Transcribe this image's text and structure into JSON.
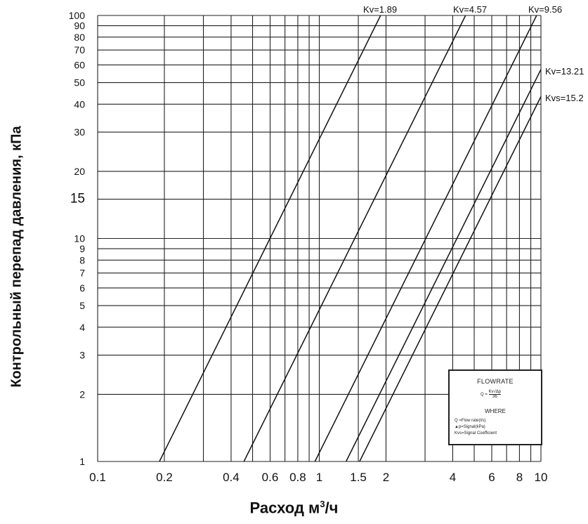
{
  "chart_data": {
    "type": "line",
    "scale": {
      "x": "log",
      "y": "log"
    },
    "xlim": [
      0.1,
      10
    ],
    "ylim": [
      1,
      100
    ],
    "grid": true,
    "xlabel": "Расход м",
    "xlabel_sup": "3",
    "xlabel_suffix": "/ч",
    "ylabel": "Контрольный перепад давления, кПа",
    "x_ticks": [
      0.1,
      0.2,
      0.3,
      0.4,
      0.5,
      0.6,
      0.7,
      0.8,
      0.9,
      1,
      1.5,
      2,
      3,
      4,
      5,
      6,
      7,
      8,
      9,
      10
    ],
    "x_tick_labels": [
      {
        "value": 0.1,
        "label": "0.1"
      },
      {
        "value": 0.2,
        "label": "0.2"
      },
      {
        "value": 0.4,
        "label": "0.4"
      },
      {
        "value": 0.6,
        "label": "0.6"
      },
      {
        "value": 0.8,
        "label": "0.8"
      },
      {
        "value": 1,
        "label": "1"
      },
      {
        "value": 1.5,
        "label": "1.5"
      },
      {
        "value": 2,
        "label": "2"
      },
      {
        "value": 4,
        "label": "4"
      },
      {
        "value": 6,
        "label": "6"
      },
      {
        "value": 8,
        "label": "8"
      },
      {
        "value": 10,
        "label": "10"
      }
    ],
    "y_ticks": [
      1,
      2,
      3,
      4,
      5,
      6,
      7,
      8,
      9,
      10,
      15,
      20,
      30,
      40,
      50,
      60,
      70,
      80,
      90,
      100
    ],
    "y_tick_labels": [
      {
        "value": 1,
        "label": "1"
      },
      {
        "value": 2,
        "label": "2"
      },
      {
        "value": 3,
        "label": "3"
      },
      {
        "value": 4,
        "label": "4"
      },
      {
        "value": 5,
        "label": "5"
      },
      {
        "value": 6,
        "label": "6"
      },
      {
        "value": 7,
        "label": "7"
      },
      {
        "value": 8,
        "label": "8"
      },
      {
        "value": 9,
        "label": "9"
      },
      {
        "value": 10,
        "label": "10"
      },
      {
        "value": 15,
        "label": "15"
      },
      {
        "value": 20,
        "label": "20"
      },
      {
        "value": 30,
        "label": "30"
      },
      {
        "value": 40,
        "label": "40"
      },
      {
        "value": 50,
        "label": "50"
      },
      {
        "value": 60,
        "label": "60"
      },
      {
        "value": 70,
        "label": "70"
      },
      {
        "value": 80,
        "label": "80"
      },
      {
        "value": 90,
        "label": "90"
      },
      {
        "value": 100,
        "label": "100"
      }
    ],
    "series": [
      {
        "name": "Kv=1.89",
        "kv": 1.89,
        "label_text": "Kv=1.89",
        "points": [
          [
            0.19,
            1
          ],
          [
            1.89,
            100
          ]
        ]
      },
      {
        "name": "Kv=4.57",
        "kv": 4.57,
        "label_text": "Kv=4.57",
        "points": [
          [
            0.457,
            1
          ],
          [
            4.57,
            100
          ]
        ]
      },
      {
        "name": "Kv=9.56",
        "kv": 9.56,
        "label_text": "Kv=9.56",
        "points": [
          [
            0.956,
            1
          ],
          [
            9.56,
            100
          ]
        ]
      },
      {
        "name": "Kv=13.21",
        "kv": 13.21,
        "label_text": "Kv=13.21",
        "points": [
          [
            1.321,
            1
          ],
          [
            10,
            57.3
          ]
        ]
      },
      {
        "name": "Kv=15.2",
        "kv": 15.2,
        "label_text": "Kvs=15.2",
        "points": [
          [
            1.52,
            1
          ],
          [
            10,
            43.3
          ]
        ]
      }
    ]
  },
  "legend_box": {
    "title": "FLOWRATE",
    "formula_lhs": "Q =",
    "formula_num": "Kv√Δp",
    "formula_den": "36",
    "where": "WHERE",
    "definitions": [
      "Q =Flow rate(l/s)",
      "▲p=Signal(kPa)",
      "Kvs=Signal Coefficient"
    ]
  }
}
